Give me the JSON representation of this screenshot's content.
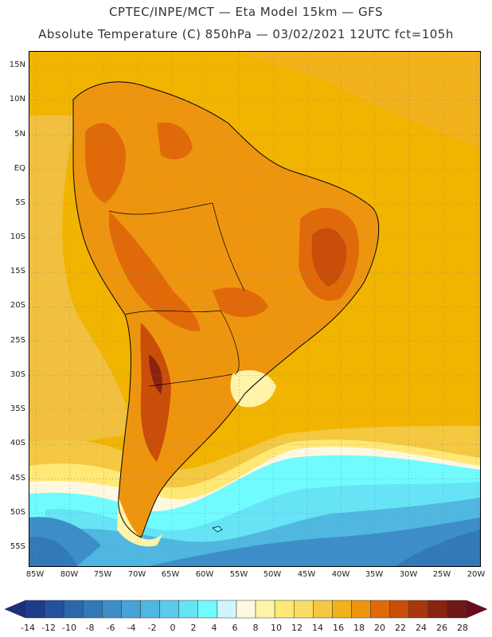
{
  "header": {
    "line1": "CPTEC/INPE/MCT —  Eta Model 15km — GFS",
    "line2": "Absolute Temperature (C) 850hPa — 03/02/2021 12UTC fct=105h"
  },
  "map": {
    "lat_labels": [
      "15N",
      "10N",
      "5N",
      "EQ",
      "5S",
      "10S",
      "15S",
      "20S",
      "25S",
      "30S",
      "35S",
      "40S",
      "45S",
      "50S",
      "55S"
    ],
    "lon_labels": [
      "85W",
      "80W",
      "75W",
      "70W",
      "65W",
      "60W",
      "55W",
      "50W",
      "45W",
      "40W",
      "35W",
      "30W",
      "25W",
      "20W"
    ]
  },
  "colorbar": {
    "labels": [
      "-14",
      "-12",
      "-10",
      "-8",
      "-6",
      "-4",
      "-2",
      "0",
      "2",
      "4",
      "6",
      "8",
      "10",
      "12",
      "14",
      "16",
      "18",
      "20",
      "22",
      "24",
      "26",
      "28"
    ],
    "colors": [
      "#1d3c8c",
      "#24519e",
      "#2a67ad",
      "#3279b8",
      "#3d8ec8",
      "#46a3d6",
      "#50b7e0",
      "#5ccbeb",
      "#66e3f5",
      "#70fbff",
      "#d1f5ff",
      "#fff8e0",
      "#fff3a8",
      "#ffe875",
      "#fadc62",
      "#f5c842",
      "#f2b21c",
      "#ee9510",
      "#e06a0a",
      "#c84e0a",
      "#a83710",
      "#8a2310",
      "#701818"
    ],
    "low_cap_color": "#1b2f7a",
    "high_cap_color": "#6b0a1e"
  }
}
